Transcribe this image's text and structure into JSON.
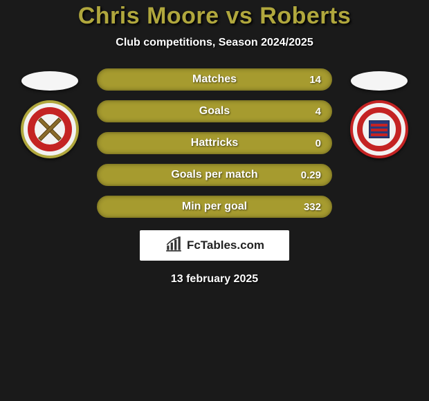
{
  "header": {
    "title_prefix": "Chris Moore",
    "title_vs": " vs ",
    "title_suffix": "Roberts",
    "title_color": "#b0a73d",
    "subtitle": "Club competitions, Season 2024/2025"
  },
  "players": {
    "left": {
      "name": "Chris Moore",
      "club_badge": {
        "outer_border": "#b0a73d",
        "ring_color": "#c42323",
        "center_bg": "#f2f2f2"
      }
    },
    "right": {
      "name": "Roberts",
      "club_badge": {
        "outer_border": "#c42323",
        "ring_color": "#c42323",
        "center_bg": "#2a3a7a"
      }
    }
  },
  "stats": {
    "bar_bg": "#a69b2f",
    "bar_border": "#8a8126",
    "rows": [
      {
        "label": "Matches",
        "left": "",
        "right": "14"
      },
      {
        "label": "Goals",
        "left": "",
        "right": "4"
      },
      {
        "label": "Hattricks",
        "left": "",
        "right": "0"
      },
      {
        "label": "Goals per match",
        "left": "",
        "right": "0.29"
      },
      {
        "label": "Min per goal",
        "left": "",
        "right": "332"
      }
    ]
  },
  "footer": {
    "brand_text": "FcTables.com",
    "brand_icon": "bar-chart-icon",
    "brand_bg": "#ffffff",
    "date_text": "13 february 2025"
  },
  "colors": {
    "page_bg": "#1a1a1a",
    "text": "#ffffff"
  }
}
